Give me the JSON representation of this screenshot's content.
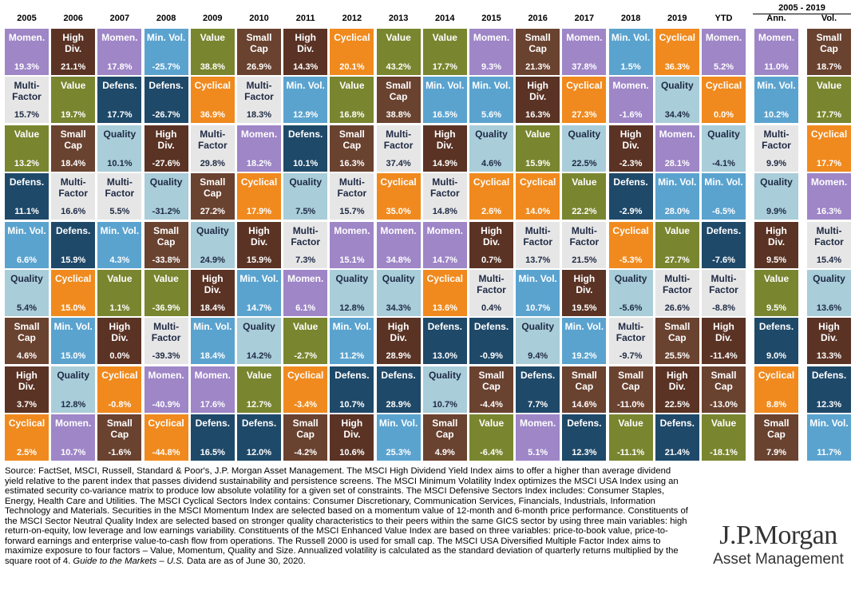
{
  "header": {
    "years": [
      "2005",
      "2006",
      "2007",
      "2008",
      "2009",
      "2010",
      "2011",
      "2012",
      "2013",
      "2014",
      "2015",
      "2016",
      "2017",
      "2018",
      "2019",
      "YTD",
      "Ann.",
      "Vol."
    ],
    "span_label": "2005 - 2019"
  },
  "colors": {
    "Momen.": "#9e86c7",
    "Multi-Factor": "#e6e6e6",
    "Value": "#79862f",
    "Defens.": "#1f4969",
    "Min. Vol.": "#5ba3cf",
    "Quality": "#a9cdd9",
    "Small Cap": "#6a4230",
    "High Div.": "#5a3325",
    "Cyclical": "#f08a1e"
  },
  "chart_data": {
    "type": "table",
    "columns": [
      "2005",
      "2006",
      "2007",
      "2008",
      "2009",
      "2010",
      "2011",
      "2012",
      "2013",
      "2014",
      "2015",
      "2016",
      "2017",
      "2018",
      "2019",
      "YTD",
      "Ann.",
      "Vol."
    ],
    "cells": [
      [
        {
          "label": "Momen.",
          "value": "19.3%"
        },
        {
          "label": "Multi-Factor",
          "value": "15.7%"
        },
        {
          "label": "Value",
          "value": "13.2%"
        },
        {
          "label": "Defens.",
          "value": "11.1%"
        },
        {
          "label": "Min. Vol.",
          "value": "6.6%"
        },
        {
          "label": "Quality",
          "value": "5.4%"
        },
        {
          "label": "Small Cap",
          "value": "4.6%"
        },
        {
          "label": "High Div.",
          "value": "3.7%"
        },
        {
          "label": "Cyclical",
          "value": "2.5%"
        }
      ],
      [
        {
          "label": "High Div.",
          "value": "21.1%"
        },
        {
          "label": "Value",
          "value": "19.7%"
        },
        {
          "label": "Small Cap",
          "value": "18.4%"
        },
        {
          "label": "Multi-Factor",
          "value": "16.6%"
        },
        {
          "label": "Defens.",
          "value": "15.9%"
        },
        {
          "label": "Cyclical",
          "value": "15.0%"
        },
        {
          "label": "Min. Vol.",
          "value": "15.0%"
        },
        {
          "label": "Quality",
          "value": "12.8%"
        },
        {
          "label": "Momen.",
          "value": "10.7%"
        }
      ],
      [
        {
          "label": "Momen.",
          "value": "17.8%"
        },
        {
          "label": "Defens.",
          "value": "17.7%"
        },
        {
          "label": "Quality",
          "value": "10.1%"
        },
        {
          "label": "Multi-Factor",
          "value": "5.5%"
        },
        {
          "label": "Min. Vol.",
          "value": "4.3%"
        },
        {
          "label": "Value",
          "value": "1.1%"
        },
        {
          "label": "High Div.",
          "value": "0.0%"
        },
        {
          "label": "Cyclical",
          "value": "-0.8%"
        },
        {
          "label": "Small Cap",
          "value": "-1.6%"
        }
      ],
      [
        {
          "label": "Min. Vol.",
          "value": "-25.7%"
        },
        {
          "label": "Defens.",
          "value": "-26.7%"
        },
        {
          "label": "High Div.",
          "value": "-27.6%"
        },
        {
          "label": "Quality",
          "value": "-31.2%"
        },
        {
          "label": "Small Cap",
          "value": "-33.8%"
        },
        {
          "label": "Value",
          "value": "-36.9%"
        },
        {
          "label": "Multi-Factor",
          "value": "-39.3%"
        },
        {
          "label": "Momen.",
          "value": "-40.9%"
        },
        {
          "label": "Cyclical",
          "value": "-44.8%"
        }
      ],
      [
        {
          "label": "Value",
          "value": "38.8%"
        },
        {
          "label": "Cyclical",
          "value": "36.9%"
        },
        {
          "label": "Multi-Factor",
          "value": "29.8%"
        },
        {
          "label": "Small Cap",
          "value": "27.2%"
        },
        {
          "label": "Quality",
          "value": "24.9%"
        },
        {
          "label": "High Div.",
          "value": "18.4%"
        },
        {
          "label": "Min. Vol.",
          "value": "18.4%"
        },
        {
          "label": "Momen.",
          "value": "17.6%"
        },
        {
          "label": "Defens.",
          "value": "16.5%"
        }
      ],
      [
        {
          "label": "Small Cap",
          "value": "26.9%"
        },
        {
          "label": "Multi-Factor",
          "value": "18.3%"
        },
        {
          "label": "Momen.",
          "value": "18.2%"
        },
        {
          "label": "Cyclical",
          "value": "17.9%"
        },
        {
          "label": "High Div.",
          "value": "15.9%"
        },
        {
          "label": "Min. Vol.",
          "value": "14.7%"
        },
        {
          "label": "Quality",
          "value": "14.2%"
        },
        {
          "label": "Value",
          "value": "12.7%"
        },
        {
          "label": "Defens.",
          "value": "12.0%"
        }
      ],
      [
        {
          "label": "High Div.",
          "value": "14.3%"
        },
        {
          "label": "Min. Vol.",
          "value": "12.9%"
        },
        {
          "label": "Defens.",
          "value": "10.1%"
        },
        {
          "label": "Quality",
          "value": "7.5%"
        },
        {
          "label": "Multi-Factor",
          "value": "7.3%"
        },
        {
          "label": "Momen.",
          "value": "6.1%"
        },
        {
          "label": "Value",
          "value": "-2.7%"
        },
        {
          "label": "Cyclical",
          "value": "-3.4%"
        },
        {
          "label": "Small Cap",
          "value": "-4.2%"
        }
      ],
      [
        {
          "label": "Cyclical",
          "value": "20.1%"
        },
        {
          "label": "Value",
          "value": "16.8%"
        },
        {
          "label": "Small Cap",
          "value": "16.3%"
        },
        {
          "label": "Multi-Factor",
          "value": "15.7%"
        },
        {
          "label": "Momen.",
          "value": "15.1%"
        },
        {
          "label": "Quality",
          "value": "12.8%"
        },
        {
          "label": "Min. Vol.",
          "value": "11.2%"
        },
        {
          "label": "Defens.",
          "value": "10.7%"
        },
        {
          "label": "High Div.",
          "value": "10.6%"
        }
      ],
      [
        {
          "label": "Value",
          "value": "43.2%"
        },
        {
          "label": "Small Cap",
          "value": "38.8%"
        },
        {
          "label": "Multi-Factor",
          "value": "37.4%"
        },
        {
          "label": "Cyclical",
          "value": "35.0%"
        },
        {
          "label": "Momen.",
          "value": "34.8%"
        },
        {
          "label": "Quality",
          "value": "34.3%"
        },
        {
          "label": "High Div.",
          "value": "28.9%"
        },
        {
          "label": "Defens.",
          "value": "28.9%"
        },
        {
          "label": "Min. Vol.",
          "value": "25.3%"
        }
      ],
      [
        {
          "label": "Value",
          "value": "17.7%"
        },
        {
          "label": "Min. Vol.",
          "value": "16.5%"
        },
        {
          "label": "High Div.",
          "value": "14.9%"
        },
        {
          "label": "Multi-Factor",
          "value": "14.8%"
        },
        {
          "label": "Momen.",
          "value": "14.7%"
        },
        {
          "label": "Cyclical",
          "value": "13.6%"
        },
        {
          "label": "Defens.",
          "value": "13.0%"
        },
        {
          "label": "Quality",
          "value": "10.7%"
        },
        {
          "label": "Small Cap",
          "value": "4.9%"
        }
      ],
      [
        {
          "label": "Momen.",
          "value": "9.3%"
        },
        {
          "label": "Min. Vol.",
          "value": "5.6%"
        },
        {
          "label": "Quality",
          "value": "4.6%"
        },
        {
          "label": "Cyclical",
          "value": "2.6%"
        },
        {
          "label": "High Div.",
          "value": "0.7%"
        },
        {
          "label": "Multi-Factor",
          "value": "0.4%"
        },
        {
          "label": "Defens.",
          "value": "-0.9%"
        },
        {
          "label": "Small Cap",
          "value": "-4.4%"
        },
        {
          "label": "Value",
          "value": "-6.4%"
        }
      ],
      [
        {
          "label": "Small Cap",
          "value": "21.3%"
        },
        {
          "label": "High Div.",
          "value": "16.3%"
        },
        {
          "label": "Value",
          "value": "15.9%"
        },
        {
          "label": "Cyclical",
          "value": "14.0%"
        },
        {
          "label": "Multi-Factor",
          "value": "13.7%"
        },
        {
          "label": "Min. Vol.",
          "value": "10.7%"
        },
        {
          "label": "Quality",
          "value": "9.4%"
        },
        {
          "label": "Defens.",
          "value": "7.7%"
        },
        {
          "label": "Momen.",
          "value": "5.1%"
        }
      ],
      [
        {
          "label": "Momen.",
          "value": "37.8%"
        },
        {
          "label": "Cyclical",
          "value": "27.3%"
        },
        {
          "label": "Quality",
          "value": "22.5%"
        },
        {
          "label": "Value",
          "value": "22.2%"
        },
        {
          "label": "Multi-Factor",
          "value": "21.5%"
        },
        {
          "label": "High Div.",
          "value": "19.5%"
        },
        {
          "label": "Min. Vol.",
          "value": "19.2%"
        },
        {
          "label": "Small Cap",
          "value": "14.6%"
        },
        {
          "label": "Defens.",
          "value": "12.3%"
        }
      ],
      [
        {
          "label": "Min. Vol.",
          "value": "1.5%"
        },
        {
          "label": "Momen.",
          "value": "-1.6%"
        },
        {
          "label": "High Div.",
          "value": "-2.3%"
        },
        {
          "label": "Defens.",
          "value": "-2.9%"
        },
        {
          "label": "Cyclical",
          "value": "-5.3%"
        },
        {
          "label": "Quality",
          "value": "-5.6%"
        },
        {
          "label": "Multi-Factor",
          "value": "-9.7%"
        },
        {
          "label": "Small Cap",
          "value": "-11.0%"
        },
        {
          "label": "Value",
          "value": "-11.1%"
        }
      ],
      [
        {
          "label": "Cyclical",
          "value": "36.3%"
        },
        {
          "label": "Quality",
          "value": "34.4%"
        },
        {
          "label": "Momen.",
          "value": "28.1%"
        },
        {
          "label": "Min. Vol.",
          "value": "28.0%"
        },
        {
          "label": "Value",
          "value": "27.7%"
        },
        {
          "label": "Multi-Factor",
          "value": "26.6%"
        },
        {
          "label": "Small Cap",
          "value": "25.5%"
        },
        {
          "label": "High Div.",
          "value": "22.5%"
        },
        {
          "label": "Defens.",
          "value": "21.4%"
        }
      ],
      [
        {
          "label": "Momen.",
          "value": "5.2%"
        },
        {
          "label": "Cyclical",
          "value": "0.0%"
        },
        {
          "label": "Quality",
          "value": "-4.1%"
        },
        {
          "label": "Min. Vol.",
          "value": "-6.5%"
        },
        {
          "label": "Defens.",
          "value": "-7.6%"
        },
        {
          "label": "Multi-Factor",
          "value": "-8.8%"
        },
        {
          "label": "High Div.",
          "value": "-11.4%"
        },
        {
          "label": "Small Cap",
          "value": "-13.0%"
        },
        {
          "label": "Value",
          "value": "-18.1%"
        }
      ],
      [
        {
          "label": "Momen.",
          "value": "11.0%"
        },
        {
          "label": "Min. Vol.",
          "value": "10.2%"
        },
        {
          "label": "Multi-Factor",
          "value": "9.9%"
        },
        {
          "label": "Quality",
          "value": "9.9%"
        },
        {
          "label": "High Div.",
          "value": "9.5%"
        },
        {
          "label": "Value",
          "value": "9.5%"
        },
        {
          "label": "Defens.",
          "value": "9.0%"
        },
        {
          "label": "Cyclical",
          "value": "8.8%"
        },
        {
          "label": "Small Cap",
          "value": "7.9%"
        }
      ],
      [
        {
          "label": "Small Cap",
          "value": "18.7%"
        },
        {
          "label": "Value",
          "value": "17.7%"
        },
        {
          "label": "Cyclical",
          "value": "17.7%"
        },
        {
          "label": "Momen.",
          "value": "16.3%"
        },
        {
          "label": "Multi-Factor",
          "value": "15.4%"
        },
        {
          "label": "Quality",
          "value": "13.6%"
        },
        {
          "label": "High Div.",
          "value": "13.3%"
        },
        {
          "label": "Defens.",
          "value": "12.3%"
        },
        {
          "label": "Min. Vol.",
          "value": "11.7%"
        }
      ]
    ]
  },
  "footnote": {
    "text_main": "Source: FactSet, MSCI, Russell, Standard & Poor's, J.P. Morgan Asset Management. The MSCI High Dividend Yield Index aims to offer a higher than average dividend yield relative to the parent index that passes dividend sustainability and persistence screens. The MSCI Minimum Volatility Index optimizes the MSCI USA Index using an estimated security co-variance matrix to produce low absolute volatility for a given set of constraints. The MSCI Defensive Sectors Index includes: Consumer Staples, Energy, Health Care and Utilities. The MSCI Cyclical Sectors Index contains: Consumer Discretionary, Communication Services, Financials, Industrials, Information Technology and Materials. Securities in the MSCI Momentum Index are selected based on a momentum value of 12-month and 6-month price performance. Constituents of the MSCI Sector Neutral Quality Index are selected based on stronger quality characteristics to their peers within the same GICS sector by using three main variables: high return-on-equity, low leverage and low earnings variability. Constituents of the MSCI Enhanced Value Index are based on three variables: price-to-book value, price-to-forward earnings and enterprise value-to-cash flow from operations. The Russell 2000 is used for small cap. The MSCI USA Diversified Multiple Factor Index aims to maximize exposure to four factors – Value, Momentum, Quality and Size. Annualized volatility is calculated as the standard deviation of quarterly returns multiplied by the square root of 4.",
    "text_guide": "Guide to the Markets – U.S.",
    "text_tail": " Data are as of June 30, 2020."
  },
  "logo": {
    "name": "J.P.Morgan",
    "sub": "Asset Management"
  }
}
